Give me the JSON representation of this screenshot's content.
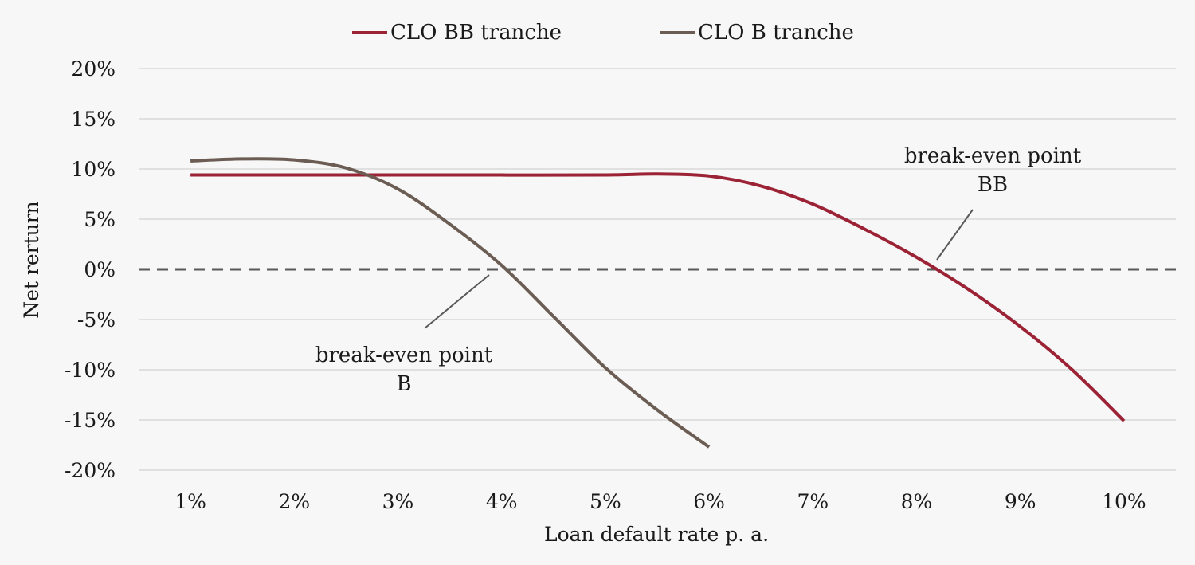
{
  "chart_data": {
    "type": "line",
    "xlabel": "Loan default rate p. a.",
    "ylabel": "Net rerturn",
    "x_ticks": [
      "1%",
      "2%",
      "3%",
      "4%",
      "5%",
      "6%",
      "7%",
      "8%",
      "9%",
      "10%"
    ],
    "y_ticks": [
      "20%",
      "15%",
      "10%",
      "5%",
      "0%",
      "-5%",
      "-10%",
      "-15%",
      "-20%"
    ],
    "xlim": [
      0.5,
      10.5
    ],
    "ylim": [
      -20,
      20
    ],
    "grid": true,
    "legend_position": "top-center",
    "series": [
      {
        "name": "CLO BB tranche",
        "color": "#9b2335",
        "x": [
          1,
          2,
          3,
          4,
          5,
          5.5,
          6,
          6.5,
          7,
          7.5,
          8,
          8.5,
          9,
          9.5,
          10
        ],
        "y": [
          9.4,
          9.4,
          9.4,
          9.4,
          9.4,
          9.5,
          9.3,
          8.3,
          6.5,
          4.0,
          1.2,
          -2.0,
          -5.7,
          -10.0,
          -15.1
        ]
      },
      {
        "name": "CLO B tranche",
        "color": "#6b5d54",
        "x": [
          1,
          1.5,
          2,
          2.5,
          3,
          3.5,
          4,
          4.5,
          5,
          5.5,
          6
        ],
        "y": [
          10.8,
          11.0,
          10.9,
          10.1,
          8.0,
          4.5,
          0.4,
          -4.7,
          -9.8,
          -14.0,
          -17.7
        ]
      }
    ],
    "reference_line": {
      "y": 0,
      "style": "dashed",
      "color": "#595959"
    },
    "annotations": [
      {
        "text_lines": [
          "break-even point",
          "BB"
        ]
      },
      {
        "text_lines": [
          "break-even point",
          "B"
        ]
      }
    ]
  }
}
